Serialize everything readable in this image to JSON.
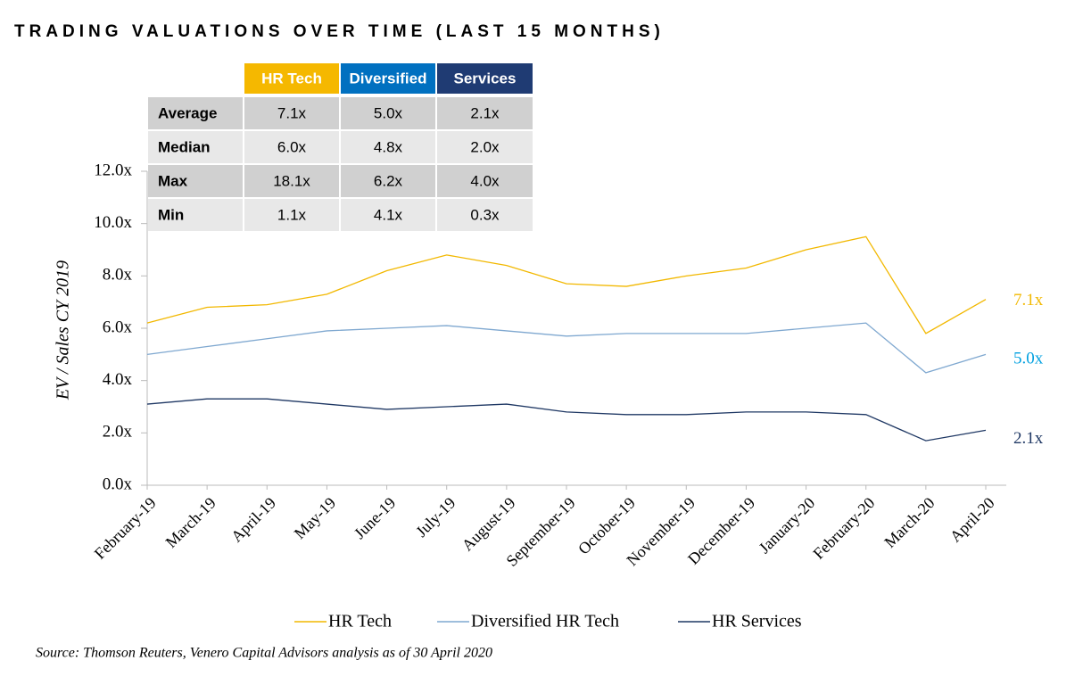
{
  "chart_data": {
    "type": "line",
    "title": "TRADING VALUATIONS OVER TIME (LAST 15 MONTHS)",
    "y_label": "EV / Sales CY 2019",
    "source": "Source: Thomson Reuters, Venero Capital Advisors analysis as of 30 April 2020",
    "x": [
      "February-19",
      "March-19",
      "April-19",
      "May-19",
      "June-19",
      "July-19",
      "August-19",
      "September-19",
      "October-19",
      "November-19",
      "December-19",
      "January-20",
      "February-20",
      "March-20",
      "April-20"
    ],
    "series": [
      {
        "name": "HR Tech",
        "color": "#f2b800",
        "values": [
          6.2,
          6.8,
          6.9,
          7.3,
          8.2,
          8.8,
          8.4,
          7.7,
          7.6,
          8.0,
          8.3,
          9.0,
          9.5,
          5.8,
          7.1
        ],
        "value_labels": [
          null,
          null,
          null,
          null,
          null,
          null,
          null,
          null,
          null,
          null,
          null,
          null,
          null,
          null,
          "7.1x"
        ],
        "label_color": "#f2b800"
      },
      {
        "name": "Diversified HR Tech",
        "color": "#7fa8d0",
        "values": [
          5.0,
          5.3,
          5.6,
          5.9,
          6.0,
          6.1,
          5.9,
          5.7,
          5.8,
          5.8,
          5.8,
          6.0,
          6.2,
          4.3,
          5.0
        ],
        "value_labels": [
          null,
          null,
          null,
          null,
          null,
          null,
          null,
          null,
          null,
          null,
          null,
          null,
          null,
          null,
          "5.0x"
        ],
        "label_color": "#00a0e0"
      },
      {
        "name": "HR Services",
        "color": "#1f3864",
        "values": [
          3.1,
          3.3,
          3.3,
          3.1,
          2.9,
          3.0,
          3.1,
          2.8,
          2.7,
          2.7,
          2.8,
          2.8,
          2.7,
          1.7,
          2.1
        ],
        "value_labels": [
          null,
          null,
          null,
          null,
          null,
          null,
          null,
          null,
          null,
          null,
          null,
          null,
          null,
          null,
          "2.1x"
        ],
        "label_color": "#1f3864"
      }
    ],
    "ylim": [
      0,
      12
    ],
    "yticks": [
      {
        "value": 0,
        "label": "0.0x"
      },
      {
        "value": 2,
        "label": "2.0x"
      },
      {
        "value": 4,
        "label": "4.0x"
      },
      {
        "value": 6,
        "label": "6.0x"
      },
      {
        "value": 8,
        "label": "8.0x"
      },
      {
        "value": 10,
        "label": "10.0x"
      },
      {
        "value": 12,
        "label": "12.0x"
      }
    ],
    "legend": "bottom",
    "table": {
      "header": [
        {
          "text": "HR Tech",
          "color": "#f5b800"
        },
        {
          "text": "Diversified",
          "color": "#0070c0"
        },
        {
          "text": "Services",
          "color": "#1f3b73"
        }
      ],
      "rows": [
        [
          "Average",
          "7.1x",
          "5.0x",
          "2.1x"
        ],
        [
          "Median",
          "6.0x",
          "4.8x",
          "2.0x"
        ],
        [
          "Max",
          "18.1x",
          "6.2x",
          "4.0x"
        ],
        [
          "Min",
          "1.1x",
          "4.1x",
          "0.3x"
        ]
      ]
    }
  }
}
